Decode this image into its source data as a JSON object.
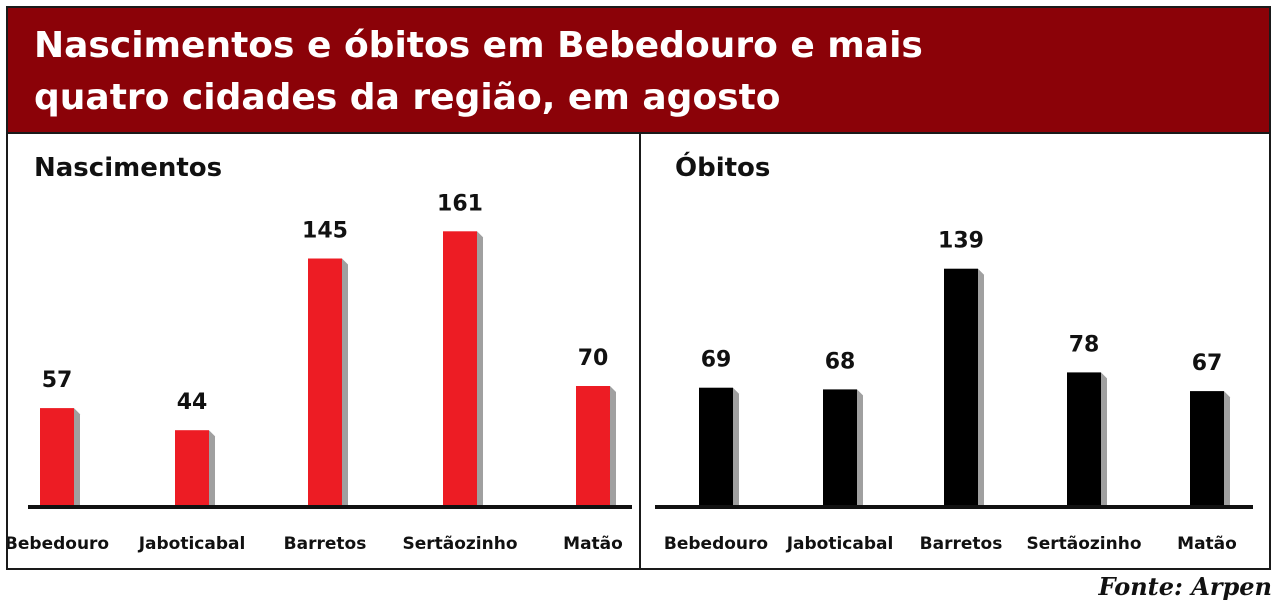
{
  "header": {
    "title_line1": "Nascimentos e óbitos em Bebedouro e mais",
    "title_line2": "quatro cidades da região, em agosto"
  },
  "source": "Fonte: Arpen",
  "colors": {
    "header_bg": "#8b0208",
    "nascimentos_bar": "#ed1c24",
    "obitos_bar": "#000000",
    "bar_shadow": "#a0a0a0"
  },
  "chart_data": [
    {
      "type": "bar",
      "title": "Nascimentos",
      "categories": [
        "Bebedouro",
        "Jaboticabal",
        "Barretos",
        "Sertãozinho",
        "Matão"
      ],
      "values": [
        57,
        44,
        145,
        161,
        70
      ],
      "ylim": [
        0,
        180
      ],
      "grid": false,
      "legend": "none"
    },
    {
      "type": "bar",
      "title": "Óbitos",
      "categories": [
        "Bebedouro",
        "Jaboticabal",
        "Barretos",
        "Sertãozinho",
        "Matão"
      ],
      "values": [
        69,
        68,
        139,
        78,
        67
      ],
      "ylim": [
        0,
        180
      ],
      "grid": false,
      "legend": "none"
    }
  ]
}
